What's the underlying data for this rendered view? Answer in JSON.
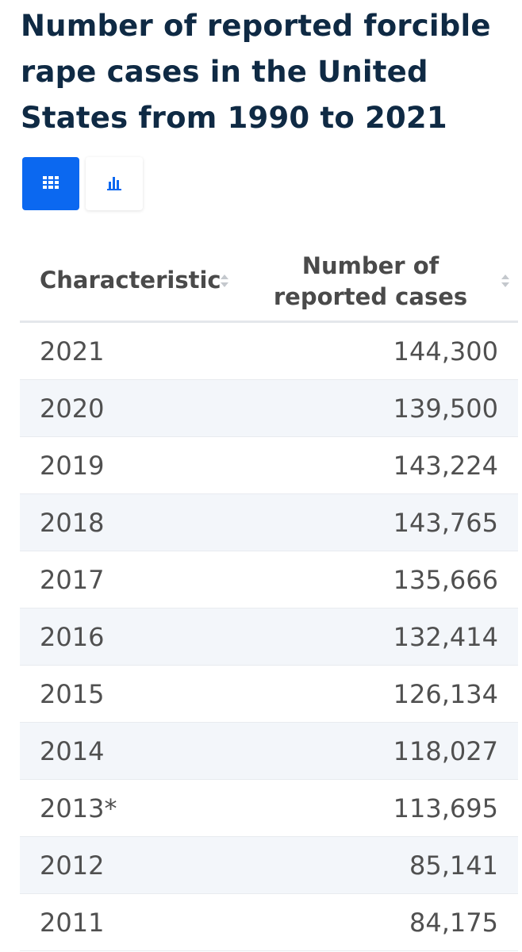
{
  "title": "Number of reported forcible rape cases in the United States from 1990 to 2021",
  "view_toggle": {
    "table_icon": "table-grid-icon",
    "chart_icon": "bar-chart-icon",
    "active": "table",
    "active_color": "#0b68f0"
  },
  "table": {
    "headers": {
      "characteristic": "Characteristic",
      "value": "Number of reported cases"
    },
    "rows": [
      {
        "year": "2021",
        "value": "144,300"
      },
      {
        "year": "2020",
        "value": "139,500"
      },
      {
        "year": "2019",
        "value": "143,224"
      },
      {
        "year": "2018",
        "value": "143,765"
      },
      {
        "year": "2017",
        "value": "135,666"
      },
      {
        "year": "2016",
        "value": "132,414"
      },
      {
        "year": "2015",
        "value": "126,134"
      },
      {
        "year": "2014",
        "value": "118,027"
      },
      {
        "year": "2013*",
        "value": "113,695"
      },
      {
        "year": "2012",
        "value": "85,141"
      },
      {
        "year": "2011",
        "value": "84,175"
      }
    ]
  }
}
